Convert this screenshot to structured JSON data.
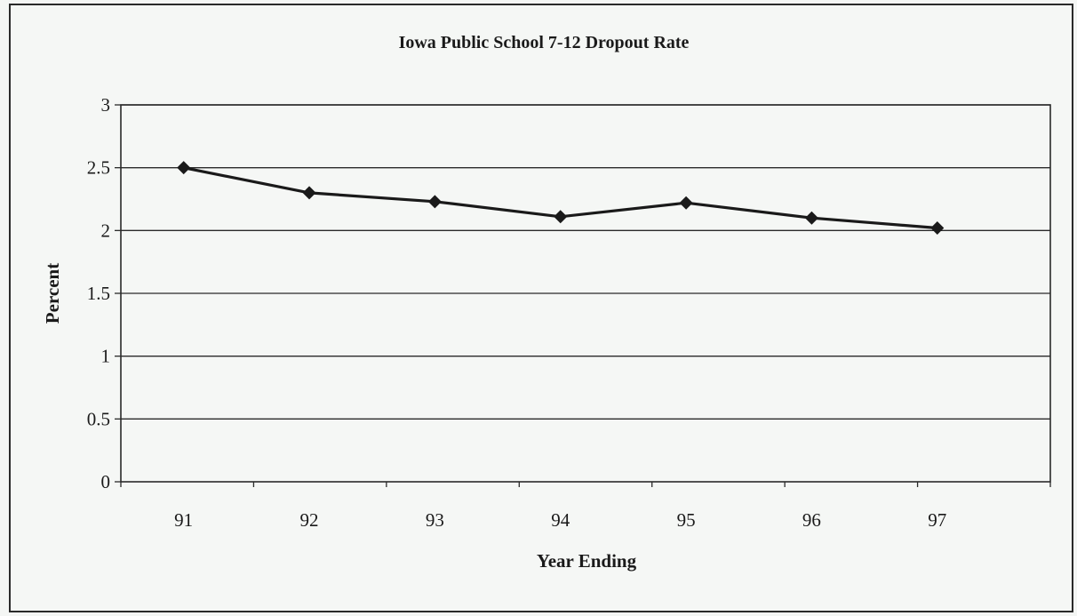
{
  "chart_data": {
    "type": "line",
    "title": "Iowa Public School 7-12 Dropout Rate",
    "xlabel": "Year Ending",
    "ylabel": "Percent",
    "categories": [
      "91",
      "92",
      "93",
      "94",
      "95",
      "96",
      "97"
    ],
    "series": [
      {
        "values": [
          2.5,
          2.3,
          2.23,
          2.11,
          2.22,
          2.1,
          2.02
        ]
      }
    ],
    "ylim": [
      0,
      3
    ],
    "yticks": [
      "0",
      "0.5",
      "1",
      "1.5",
      "2",
      "2.5",
      "3"
    ],
    "grid": true,
    "legend": "none",
    "colors": {
      "line": "#1a1a1a",
      "marker": "#1a1a1a",
      "grid": "#2a2a2a",
      "background": "#f5f7f5"
    }
  }
}
